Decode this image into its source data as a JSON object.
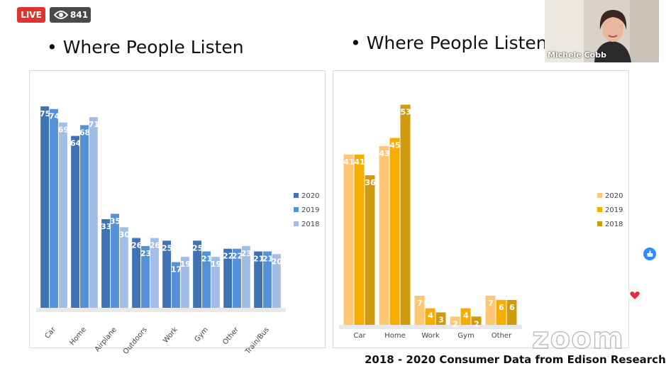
{
  "header": {
    "live_label": "LIVE",
    "viewer_count": "841"
  },
  "webcam": {
    "name": "Michele Cobb"
  },
  "slide": {
    "left_title": "• Where People Listen",
    "right_title": "• Where People Listen M",
    "footer": "2018 - 2020 Consumer Data from Edison Research",
    "watermark": "zoom"
  },
  "colors": {
    "left": [
      "#3f73b5",
      "#5591d8",
      "#a3bee6"
    ],
    "right": [
      "#ffc773",
      "#f5ad00",
      "#cf9a0f"
    ]
  },
  "chart_data": [
    {
      "type": "bar",
      "title": "",
      "categories": [
        "Car",
        "Home",
        "Airplane",
        "Outdoors",
        "Work",
        "Gym",
        "Other",
        "Train/Bus"
      ],
      "series": [
        {
          "name": "2020",
          "values": [
            75,
            64,
            33,
            26,
            25,
            25,
            22,
            21
          ]
        },
        {
          "name": "2019",
          "values": [
            74,
            68,
            35,
            23,
            17,
            21,
            22,
            21
          ]
        },
        {
          "name": "2018",
          "values": [
            69,
            71,
            30,
            26,
            19,
            19,
            23,
            20
          ]
        }
      ],
      "ylim": [
        0,
        80
      ],
      "legend": "right",
      "grid": false
    },
    {
      "type": "bar",
      "title": "",
      "categories": [
        "Car",
        "Home",
        "Work",
        "Gym",
        "Other"
      ],
      "series": [
        {
          "name": "2020",
          "values": [
            41,
            43,
            7,
            2,
            7
          ]
        },
        {
          "name": "2019",
          "values": [
            41,
            45,
            4,
            4,
            6
          ]
        },
        {
          "name": "2018",
          "values": [
            36,
            53,
            3,
            2,
            6
          ]
        }
      ],
      "ylim": [
        0,
        56
      ],
      "legend": "right",
      "grid": false
    }
  ]
}
